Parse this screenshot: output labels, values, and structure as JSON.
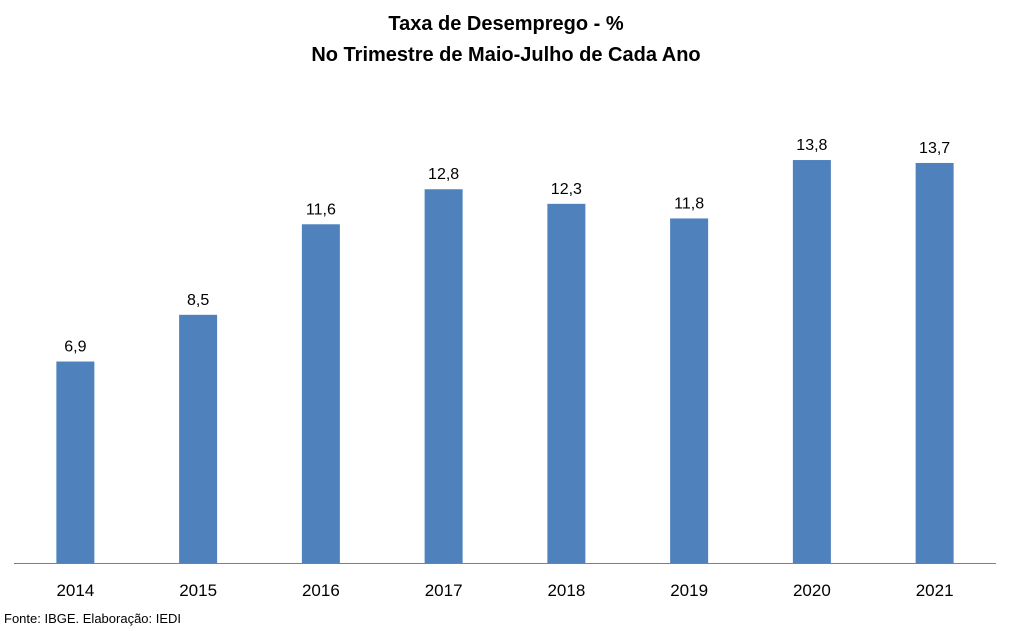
{
  "chart_data": {
    "type": "bar",
    "title": "Taxa de Desemprego - %",
    "subtitle": "No Trimestre de Maio-Julho de Cada Ano",
    "categories": [
      "2014",
      "2015",
      "2016",
      "2017",
      "2018",
      "2019",
      "2020",
      "2021"
    ],
    "values": [
      6.9,
      8.5,
      11.6,
      12.8,
      12.3,
      11.8,
      13.8,
      13.7
    ],
    "value_labels": [
      "6,9",
      "8,5",
      "11,6",
      "12,8",
      "12,3",
      "11,8",
      "13,8",
      "13,7"
    ],
    "ylim": [
      0,
      14
    ],
    "grid": false,
    "legend": "none",
    "bar_color": "#4F81BD"
  },
  "footer": {
    "source": "Fonte: IBGE. Elaboração: IEDI"
  }
}
